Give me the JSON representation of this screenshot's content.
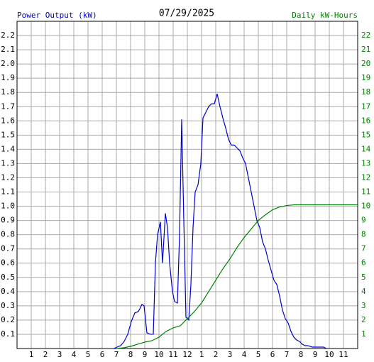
{
  "chart_data": {
    "type": "line",
    "title": "07/29/2025",
    "y_label": "Power Output (kW)",
    "y2_label": "Daily kW-Hours",
    "xlim": [
      0,
      24
    ],
    "xticks": [
      {
        "value": 1,
        "label": "1"
      },
      {
        "value": 2,
        "label": "2"
      },
      {
        "value": 3,
        "label": "3"
      },
      {
        "value": 4,
        "label": "4"
      },
      {
        "value": 5,
        "label": "5"
      },
      {
        "value": 6,
        "label": "6"
      },
      {
        "value": 7,
        "label": "7"
      },
      {
        "value": 8,
        "label": "8"
      },
      {
        "value": 9,
        "label": "9"
      },
      {
        "value": 10,
        "label": "10"
      },
      {
        "value": 11,
        "label": "11"
      },
      {
        "value": 12,
        "label": "12"
      },
      {
        "value": 13,
        "label": "1"
      },
      {
        "value": 14,
        "label": "2"
      },
      {
        "value": 15,
        "label": "3"
      },
      {
        "value": 16,
        "label": "4"
      },
      {
        "value": 17,
        "label": "5"
      },
      {
        "value": 18,
        "label": "6"
      },
      {
        "value": 19,
        "label": "7"
      },
      {
        "value": 20,
        "label": "8"
      },
      {
        "value": 21,
        "label": "9"
      },
      {
        "value": 22,
        "label": "10"
      },
      {
        "value": 23,
        "label": "11"
      }
    ],
    "ylim": [
      0,
      2.3
    ],
    "yticks": [
      0.1,
      0.2,
      0.3,
      0.4,
      0.5,
      0.6,
      0.7,
      0.8,
      0.9,
      {
        "value": 1,
        "label": "1.0"
      },
      1.1,
      1.2,
      1.3,
      1.4,
      1.5,
      1.6,
      1.7,
      1.8,
      1.9,
      {
        "value": 2,
        "label": "2.0"
      },
      2.1,
      2.2
    ],
    "y2lim": [
      0,
      23
    ],
    "y2ticks": [
      1,
      2,
      3,
      4,
      5,
      6,
      7,
      8,
      9,
      10,
      11,
      12,
      13,
      14,
      15,
      16,
      17,
      18,
      19,
      20,
      21,
      22
    ],
    "grid": true,
    "series": [
      {
        "name": "Power Output (kW)",
        "color": "#0000cc",
        "x": [
          6.8,
          7.05,
          7.3,
          7.55,
          7.8,
          8.05,
          8.3,
          8.55,
          8.8,
          8.95,
          9.15,
          9.4,
          9.6,
          9.75,
          9.9,
          10.1,
          10.25,
          10.45,
          10.6,
          10.75,
          10.95,
          11.1,
          11.3,
          11.45,
          11.6,
          11.75,
          11.9,
          12.1,
          12.25,
          12.4,
          12.55,
          12.75,
          12.95,
          13.1,
          13.3,
          13.5,
          13.7,
          13.9,
          14.1,
          14.3,
          14.5,
          14.7,
          14.9,
          15.1,
          15.3,
          15.5,
          15.7,
          15.9,
          16.1,
          16.3,
          16.5,
          16.7,
          16.9,
          17.1,
          17.3,
          17.5,
          17.7,
          17.9,
          18.1,
          18.3,
          18.5,
          18.7,
          18.9,
          19.1,
          19.3,
          19.5,
          19.7,
          19.9,
          20.1,
          20.3,
          20.5,
          20.8,
          21.1,
          21.6,
          21.8
        ],
        "values": [
          0,
          0.01,
          0.02,
          0.05,
          0.1,
          0.19,
          0.25,
          0.26,
          0.31,
          0.3,
          0.11,
          0.1,
          0.1,
          0.6,
          0.8,
          0.89,
          0.6,
          0.95,
          0.85,
          0.6,
          0.4,
          0.33,
          0.32,
          0.8,
          1.61,
          0.9,
          0.22,
          0.2,
          0.45,
          0.85,
          1.1,
          1.15,
          1.3,
          1.62,
          1.66,
          1.7,
          1.72,
          1.72,
          1.79,
          1.7,
          1.62,
          1.55,
          1.47,
          1.43,
          1.43,
          1.41,
          1.39,
          1.34,
          1.3,
          1.2,
          1.1,
          1.0,
          0.9,
          0.85,
          0.75,
          0.7,
          0.62,
          0.55,
          0.48,
          0.45,
          0.37,
          0.27,
          0.21,
          0.18,
          0.12,
          0.08,
          0.06,
          0.05,
          0.03,
          0.02,
          0.02,
          0.01,
          0.01,
          0.01,
          0
        ]
      },
      {
        "name": "Daily kW-Hours",
        "color": "#008000",
        "axis": "y2",
        "x": [
          7,
          7.5,
          8,
          8.5,
          9,
          9.5,
          10,
          10.5,
          11,
          11.5,
          12,
          12.5,
          13,
          13.5,
          14,
          14.5,
          15,
          15.5,
          16,
          16.5,
          17,
          17.5,
          18,
          18.5,
          19,
          19.5,
          20,
          24
        ],
        "values": [
          0,
          0.05,
          0.15,
          0.3,
          0.45,
          0.55,
          0.8,
          1.2,
          1.45,
          1.6,
          2.1,
          2.6,
          3.2,
          4.0,
          4.8,
          5.6,
          6.3,
          7.1,
          7.8,
          8.4,
          9.0,
          9.4,
          9.75,
          9.95,
          10.05,
          10.1,
          10.1,
          10.1
        ]
      }
    ]
  }
}
